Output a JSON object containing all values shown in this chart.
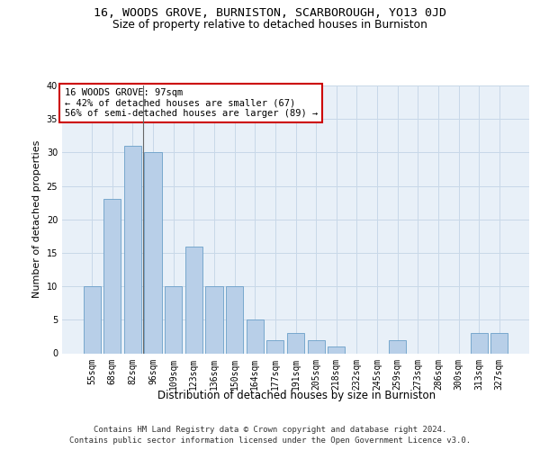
{
  "title1": "16, WOODS GROVE, BURNISTON, SCARBOROUGH, YO13 0JD",
  "title2": "Size of property relative to detached houses in Burniston",
  "xlabel": "Distribution of detached houses by size in Burniston",
  "ylabel": "Number of detached properties",
  "categories": [
    "55sqm",
    "68sqm",
    "82sqm",
    "96sqm",
    "109sqm",
    "123sqm",
    "136sqm",
    "150sqm",
    "164sqm",
    "177sqm",
    "191sqm",
    "205sqm",
    "218sqm",
    "232sqm",
    "245sqm",
    "259sqm",
    "273sqm",
    "286sqm",
    "300sqm",
    "313sqm",
    "327sqm"
  ],
  "values": [
    10,
    23,
    31,
    30,
    10,
    16,
    10,
    10,
    5,
    2,
    3,
    2,
    1,
    0,
    0,
    2,
    0,
    0,
    0,
    3,
    3
  ],
  "bar_color": "#b8cfe8",
  "bar_edge_color": "#6a9fc8",
  "grid_color": "#c8d8e8",
  "background_color": "#e8f0f8",
  "annotation_text": "16 WOODS GROVE: 97sqm\n← 42% of detached houses are smaller (67)\n56% of semi-detached houses are larger (89) →",
  "annotation_box_color": "white",
  "annotation_box_edge_color": "#cc0000",
  "ylim": [
    0,
    40
  ],
  "yticks": [
    0,
    5,
    10,
    15,
    20,
    25,
    30,
    35,
    40
  ],
  "footer1": "Contains HM Land Registry data © Crown copyright and database right 2024.",
  "footer2": "Contains public sector information licensed under the Open Government Licence v3.0.",
  "title1_fontsize": 9.5,
  "title2_fontsize": 8.8,
  "xlabel_fontsize": 8.5,
  "ylabel_fontsize": 8,
  "tick_fontsize": 7,
  "annotation_fontsize": 7.5,
  "footer_fontsize": 6.5
}
